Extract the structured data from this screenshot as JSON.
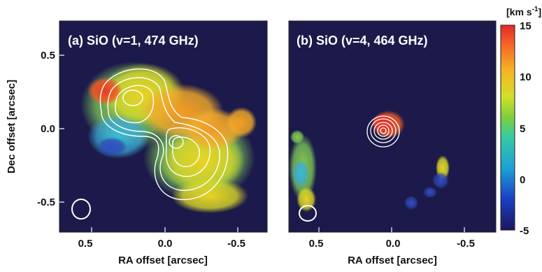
{
  "chart_data": [
    {
      "type": "heatmap",
      "title": "(a) SiO (v=1, 474 GHz)",
      "xlabel": "RA offset [arcsec]",
      "ylabel": "Dec offset [arcsec]",
      "xlim": [
        0.72,
        -0.72
      ],
      "ylim": [
        -0.7,
        0.7
      ],
      "xticks": [
        "0.5",
        "0.0",
        "-0.5"
      ],
      "yticks": [
        "0.5",
        "0.0",
        "-0.5"
      ],
      "map_blobs": [
        {
          "ra": 0.25,
          "dec": 0.12,
          "value": 10
        },
        {
          "ra": -0.05,
          "dec": 0.08,
          "value": 12
        },
        {
          "ra": -0.1,
          "dec": -0.25,
          "value": 6
        },
        {
          "ra": 0.3,
          "dec": -0.05,
          "value": 3
        },
        {
          "ra": 0.35,
          "dec": 0.25,
          "value": 13
        }
      ],
      "contour_peaks": [
        {
          "ra": 0.25,
          "dec": 0.15
        },
        {
          "ra": -0.07,
          "dec": -0.08
        }
      ],
      "beam": {
        "ra": 0.55,
        "dec": -0.55
      }
    },
    {
      "type": "heatmap",
      "title": "(b) SiO (v=4, 464 GHz)",
      "xlabel": "RA offset [arcsec]",
      "ylabel": "",
      "xlim": [
        0.72,
        -0.72
      ],
      "ylim": [
        -0.7,
        0.7
      ],
      "xticks": [
        "0.5",
        "0.0",
        "-0.5"
      ],
      "yticks": [],
      "map_blobs": [
        {
          "ra": 0.03,
          "dec": 0.02,
          "value": 15
        },
        {
          "ra": 0.62,
          "dec": -0.2,
          "value": 3
        },
        {
          "ra": -0.3,
          "dec": -0.4,
          "value": 1
        }
      ],
      "contour_peaks": [
        {
          "ra": 0.05,
          "dec": -0.02
        }
      ],
      "beam": {
        "ra": 0.55,
        "dec": -0.57
      }
    }
  ],
  "colorbar": {
    "unit": "[km s",
    "unit_sup": "-1",
    "unit_close": "]",
    "ticks": [
      "15",
      "10",
      "5",
      "0",
      "-5"
    ],
    "range": [
      -5,
      15
    ]
  }
}
